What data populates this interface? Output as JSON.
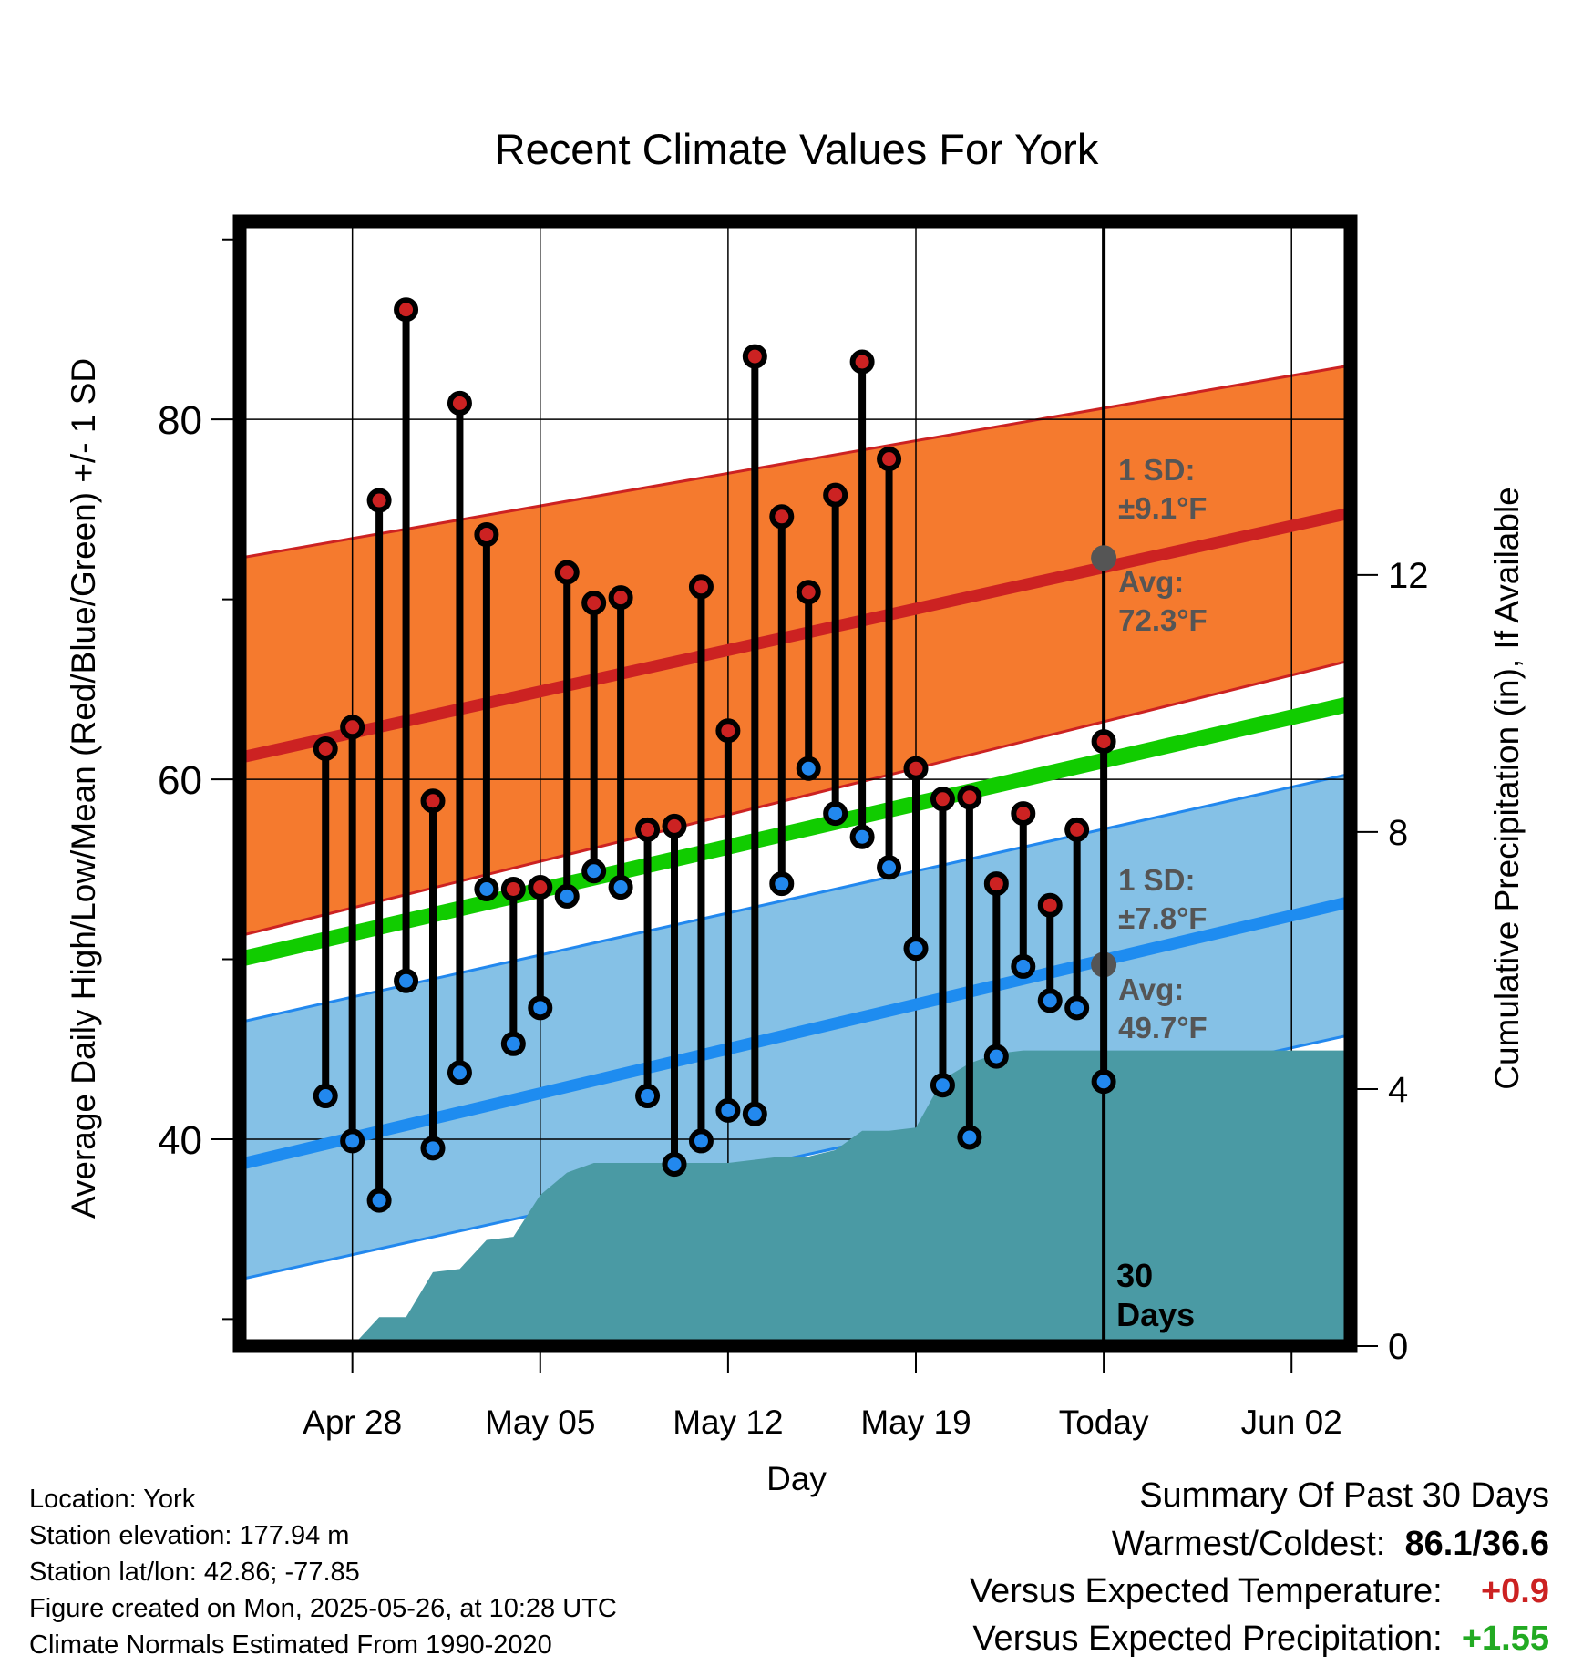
{
  "chart_data": {
    "type": "line",
    "title": "Recent Climate Values For York",
    "xlabel": "Day",
    "ylabel": "Average Daily High/Low/Mean (Red/Blue/Green) +/- 1 SD",
    "y2label": "Cumulative Precipitation (in), If Available",
    "ylim": [
      28.5,
      91
    ],
    "y2lim": [
      0,
      17.5
    ],
    "yticks": [
      40,
      60,
      80
    ],
    "y2ticks": [
      0,
      4,
      8,
      12
    ],
    "x_range_days": [
      -32.2,
      9.2
    ],
    "xticks": [
      {
        "day": -28,
        "label": "Apr 28"
      },
      {
        "day": -21,
        "label": "May 05"
      },
      {
        "day": -14,
        "label": "May 12"
      },
      {
        "day": -7,
        "label": "May 19"
      },
      {
        "day": 0,
        "label": "Today"
      },
      {
        "day": 7,
        "label": "Jun 02"
      }
    ],
    "today_label": "30\nDays",
    "normals": {
      "high_mean": [
        61.2,
        74.8
      ],
      "high_upper": [
        72.3,
        83.0
      ],
      "high_lower": [
        51.3,
        66.6
      ],
      "low_mean": [
        38.6,
        53.2
      ],
      "low_upper": [
        46.5,
        60.3
      ],
      "low_lower": [
        32.2,
        45.8
      ],
      "mean": [
        50.0,
        64.2
      ]
    },
    "high_annotation": {
      "sd": "1 SD:",
      "sd_value": "±9.1°F",
      "avg": "Avg:",
      "avg_value": "72.3°F",
      "avg_numeric": 72.3
    },
    "low_annotation": {
      "sd": "1 SD:",
      "sd_value": "±7.8°F",
      "avg": "Avg:",
      "avg_value": "49.7°F",
      "avg_numeric": 49.7
    },
    "series": [
      {
        "name": "Daily High",
        "color": "#cc2222",
        "values": [
          61.7,
          62.9,
          75.5,
          86.1,
          58.8,
          80.9,
          73.6,
          53.9,
          54.0,
          71.5,
          69.8,
          70.1,
          57.2,
          57.4,
          70.7,
          62.7,
          83.5,
          74.6,
          70.4,
          75.8,
          83.2,
          77.8,
          60.6,
          58.9,
          59.0,
          54.2,
          58.1,
          53.0,
          57.2,
          62.1
        ]
      },
      {
        "name": "Daily Low",
        "color": "#2288ee",
        "values": [
          42.4,
          39.9,
          36.6,
          48.8,
          39.5,
          43.7,
          53.9,
          45.3,
          47.3,
          53.5,
          54.9,
          54.0,
          42.4,
          38.6,
          39.9,
          41.6,
          41.4,
          54.2,
          60.6,
          58.1,
          56.8,
          55.1,
          50.6,
          43.0,
          40.1,
          44.6,
          49.6,
          47.7,
          47.3,
          43.2
        ]
      },
      {
        "name": "Cumulative Precipitation",
        "color": "#4a9aa4",
        "x": [
          -28,
          -27,
          -26,
          -25,
          -24,
          -23,
          -22,
          -21,
          -20,
          -19,
          -18,
          -17,
          -16,
          -15,
          -14,
          -13,
          -12,
          -11,
          -10,
          -9,
          -8,
          -7,
          -6,
          -5,
          -4,
          -3,
          -2,
          -1,
          0,
          9.2
        ],
        "values": [
          0.0,
          0.45,
          0.45,
          1.15,
          1.2,
          1.65,
          1.7,
          2.35,
          2.7,
          2.85,
          2.85,
          2.85,
          2.85,
          2.85,
          2.85,
          2.9,
          2.95,
          2.95,
          3.05,
          3.35,
          3.35,
          3.4,
          4.15,
          4.4,
          4.55,
          4.6,
          4.6,
          4.6,
          4.6,
          4.6
        ]
      }
    ]
  },
  "info": {
    "location": "Location: York",
    "elevation": "Station elevation: 177.94 m",
    "latlon": "Station lat/lon: 42.86; -77.85",
    "created": "Figure created on Mon, 2025-05-26, at 10:28 UTC",
    "normals": "Climate Normals Estimated From 1990-2020"
  },
  "summary": {
    "title": "Summary Of Past 30 Days",
    "warmest_label": "Warmest/Coldest:",
    "warmest_value": "86.1",
    "slash": "/",
    "coldest_value": "36.6",
    "temp_label": "Versus Expected Temperature:",
    "temp_value": "+0.9",
    "precip_label": "Versus Expected Precipitation:",
    "precip_value": "+1.55",
    "temp_color": "#cc2222",
    "precip_color": "#22aa22"
  }
}
